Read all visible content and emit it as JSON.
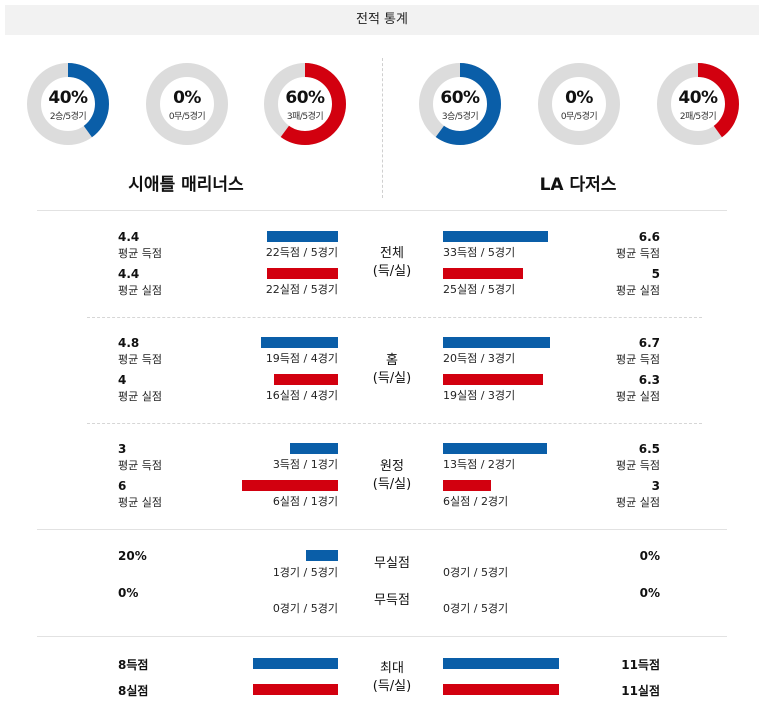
{
  "header": {
    "title": "전적 통계"
  },
  "colors": {
    "blue": "#0a5ea8",
    "red": "#d2000f",
    "ring_bg": "#dcdcdc"
  },
  "teams": {
    "left": {
      "name": "시애틀 매리너스",
      "rings": [
        {
          "pct": "40%",
          "sub": "2승/5경기",
          "fraction": 0.4,
          "color": "blue"
        },
        {
          "pct": "0%",
          "sub": "0무/5경기",
          "fraction": 0.0,
          "color": "blue"
        },
        {
          "pct": "60%",
          "sub": "3패/5경기",
          "fraction": 0.6,
          "color": "red"
        }
      ]
    },
    "right": {
      "name": "LA 다저스",
      "rings": [
        {
          "pct": "60%",
          "sub": "3승/5경기",
          "fraction": 0.6,
          "color": "blue"
        },
        {
          "pct": "0%",
          "sub": "0무/5경기",
          "fraction": 0.0,
          "color": "blue"
        },
        {
          "pct": "40%",
          "sub": "2패/5경기",
          "fraction": 0.4,
          "color": "red"
        }
      ]
    }
  },
  "sections": {
    "total": {
      "title": "전체",
      "subtitle": "(득/실)",
      "left": {
        "scored_val": "4.4",
        "scored_lbl": "평균 득점",
        "scored_bar": "22득점 / 5경기",
        "allowed_val": "4.4",
        "allowed_lbl": "평균 실점",
        "allowed_bar": "22실점 / 5경기"
      },
      "right": {
        "scored_val": "6.6",
        "scored_lbl": "평균 득점",
        "scored_bar": "33득점 / 5경기",
        "allowed_val": "5",
        "allowed_lbl": "평균 실점",
        "allowed_bar": "25실점 / 5경기"
      }
    },
    "home": {
      "title": "홈",
      "subtitle": "(득/실)",
      "left": {
        "scored_val": "4.8",
        "scored_lbl": "평균 득점",
        "scored_bar": "19득점 / 4경기",
        "allowed_val": "4",
        "allowed_lbl": "평균 실점",
        "allowed_bar": "16실점 / 4경기"
      },
      "right": {
        "scored_val": "6.7",
        "scored_lbl": "평균 득점",
        "scored_bar": "20득점 / 3경기",
        "allowed_val": "6.3",
        "allowed_lbl": "평균 실점",
        "allowed_bar": "19실점 / 3경기"
      }
    },
    "away": {
      "title": "원정",
      "subtitle": "(득/실)",
      "left": {
        "scored_val": "3",
        "scored_lbl": "평균 득점",
        "scored_bar": "3득점 / 1경기",
        "allowed_val": "6",
        "allowed_lbl": "평균 실점",
        "allowed_bar": "6실점 / 1경기"
      },
      "right": {
        "scored_val": "6.5",
        "scored_lbl": "평균 득점",
        "scored_bar": "13득점 / 2경기",
        "allowed_val": "3",
        "allowed_lbl": "평균 실점",
        "allowed_bar": "6실점 / 2경기"
      }
    },
    "shutout": {
      "title1": "무실점",
      "title2": "무득점",
      "left": {
        "shutout_val": "20%",
        "shutout_bar": "1경기 / 5경기",
        "scoreless_val": "0%",
        "scoreless_bar": "0경기 / 5경기"
      },
      "right": {
        "shutout_val": "0%",
        "shutout_bar": "0경기 / 5경기",
        "scoreless_val": "0%",
        "scoreless_bar": "0경기 / 5경기"
      }
    },
    "max": {
      "title": "최대",
      "subtitle": "(득/실)",
      "left": {
        "scored": "8득점",
        "allowed": "8실점"
      },
      "right": {
        "scored": "11득점",
        "allowed": "11실점"
      }
    }
  }
}
